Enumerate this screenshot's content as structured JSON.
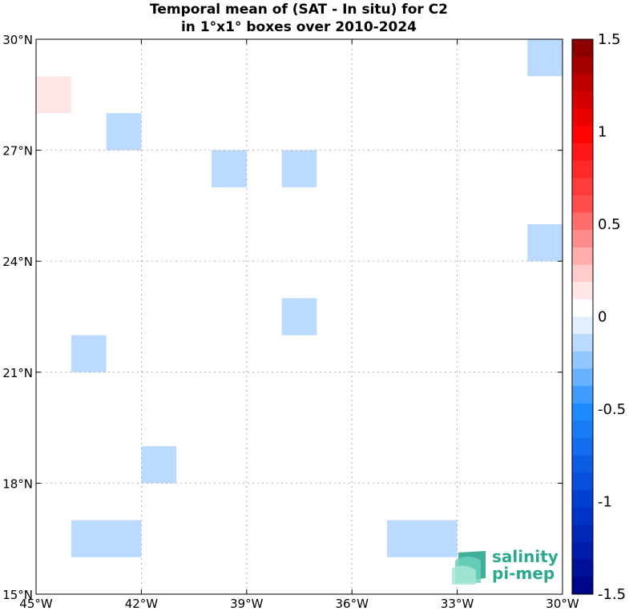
{
  "title": {
    "line1": "Temporal mean of (SAT - In situ) for C2",
    "line2": "in 1°x1° boxes over 2010-2024"
  },
  "map": {
    "lon_range": [
      -45,
      -30
    ],
    "lat_range": [
      15,
      30
    ],
    "grid": true,
    "x_ticks": [
      {
        "value": -45,
        "label": "45°W"
      },
      {
        "value": -42,
        "label": "42°W"
      },
      {
        "value": -39,
        "label": "39°W"
      },
      {
        "value": -36,
        "label": "36°W"
      },
      {
        "value": -33,
        "label": "33°W"
      },
      {
        "value": -30,
        "label": "30°W"
      }
    ],
    "y_ticks": [
      {
        "value": 15,
        "label": "15°N"
      },
      {
        "value": 18,
        "label": "18°N"
      },
      {
        "value": 21,
        "label": "21°N"
      },
      {
        "value": 24,
        "label": "24°N"
      },
      {
        "value": 27,
        "label": "27°N"
      },
      {
        "value": 30,
        "label": "30°N"
      }
    ],
    "cells": [
      {
        "lon_w": -45,
        "lon_e": -44,
        "lat_s": 28,
        "lat_n": 29,
        "value": 0.15
      },
      {
        "lon_w": -43,
        "lon_e": -42,
        "lat_s": 27,
        "lat_n": 28,
        "value": -0.1
      },
      {
        "lon_w": -40,
        "lon_e": -39,
        "lat_s": 26,
        "lat_n": 27,
        "value": -0.1
      },
      {
        "lon_w": -38,
        "lon_e": -37,
        "lat_s": 26,
        "lat_n": 27,
        "value": -0.1
      },
      {
        "lon_w": -31,
        "lon_e": -30,
        "lat_s": 29,
        "lat_n": 30,
        "value": -0.1
      },
      {
        "lon_w": -31,
        "lon_e": -30,
        "lat_s": 24,
        "lat_n": 25,
        "value": -0.1
      },
      {
        "lon_w": -38,
        "lon_e": -37,
        "lat_s": 22,
        "lat_n": 23,
        "value": -0.1
      },
      {
        "lon_w": -44,
        "lon_e": -43,
        "lat_s": 21,
        "lat_n": 22,
        "value": -0.1
      },
      {
        "lon_w": -42,
        "lon_e": -41,
        "lat_s": 18,
        "lat_n": 19,
        "value": -0.1
      },
      {
        "lon_w": -44,
        "lon_e": -42,
        "lat_s": 16,
        "lat_n": 17,
        "value": -0.1
      },
      {
        "lon_w": -35,
        "lon_e": -33,
        "lat_s": 16,
        "lat_n": 17,
        "value": -0.1
      }
    ]
  },
  "colorbar": {
    "min": -1.5,
    "max": 1.5,
    "levels": 32,
    "ticks": [
      {
        "value": 1.5,
        "label": "1.5"
      },
      {
        "value": 1.0,
        "label": "1"
      },
      {
        "value": 0.5,
        "label": "0.5"
      },
      {
        "value": 0.0,
        "label": "0"
      },
      {
        "value": -0.5,
        "label": "-0.5"
      },
      {
        "value": -1.0,
        "label": "-1"
      },
      {
        "value": -1.5,
        "label": "-1.5"
      }
    ]
  },
  "logo": {
    "line1": "salinity",
    "line2": "pi-mep",
    "color": "#2aa98f"
  }
}
